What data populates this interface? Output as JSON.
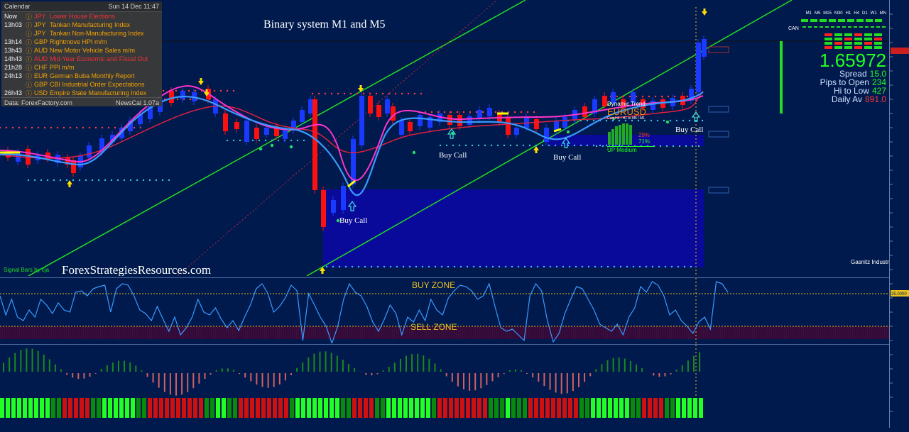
{
  "chart_title": "Binary system M1 and M5",
  "watermark": "ForexStrategiesResources.com",
  "signal_bars_label": "Signal Bars by cja",
  "brand_logo": "Gasnitz Industries",
  "buy_call_label": "Buy Call",
  "calendar": {
    "title": "Calendar",
    "datetime": "Sun 14 Dec 11:47",
    "rows": [
      {
        "time": "Now",
        "currency": "JPY",
        "event": "Lower House Elections",
        "color": "#ff3333"
      },
      {
        "time": "13h03",
        "currency": "JPY",
        "event": "Tankan Manufacturing Index",
        "color": "#ffaa00"
      },
      {
        "time": "",
        "currency": "JPY",
        "event": "Tankan Non-Manufacturing Index",
        "color": "#ffaa00"
      },
      {
        "time": "13h14",
        "currency": "GBP",
        "event": "Rightmove HPI m/m",
        "color": "#ffaa00"
      },
      {
        "time": "13h43",
        "currency": "AUD",
        "event": "New Motor Vehicle Sales m/m",
        "color": "#ffaa00"
      },
      {
        "time": "14h43",
        "currency": "AUD",
        "event": "Mid-Year Economic and Fiscal Out",
        "color": "#ff3333"
      },
      {
        "time": "21h28",
        "currency": "CHF",
        "event": "PPI m/m",
        "color": "#ffaa00"
      },
      {
        "time": "24h13",
        "currency": "EUR",
        "event": "German Buba Monthly Report",
        "color": "#ffaa00"
      },
      {
        "time": "",
        "currency": "GBP",
        "event": "CBI Industrial Order Expectations",
        "color": "#ffaa00"
      },
      {
        "time": "26h43",
        "currency": "USD",
        "event": "Empire State Manufacturing Index",
        "color": "#ffaa00"
      }
    ],
    "source": "Data: ForexFactory.com",
    "version": "NewsCal 1.07a"
  },
  "dashboard": {
    "timeframes": [
      "M1",
      "M5",
      "M15",
      "M30",
      "H1",
      "H4",
      "D1",
      "W1",
      "MN"
    ],
    "price": "1.65972",
    "spread_label": "Spread",
    "spread": "15.0",
    "pips_label": "Pips to Open",
    "pips": "234",
    "hilo_label": "Hi to Low",
    "hilo": "427",
    "daily_label": "Daily Av",
    "daily": "891.0"
  },
  "trend_panel": {
    "title": "Dynamic Trend",
    "pair": "EURUSD",
    "sub": "Curr H4 / H1 to M5 / M1",
    "pct_red": "29%",
    "pct_green": "71%",
    "status": "UP Medium"
  },
  "oscillator": {
    "buy_zone": "BUY ZONE",
    "sell_zone": "SELL ZONE",
    "level": "25.0000"
  }
}
